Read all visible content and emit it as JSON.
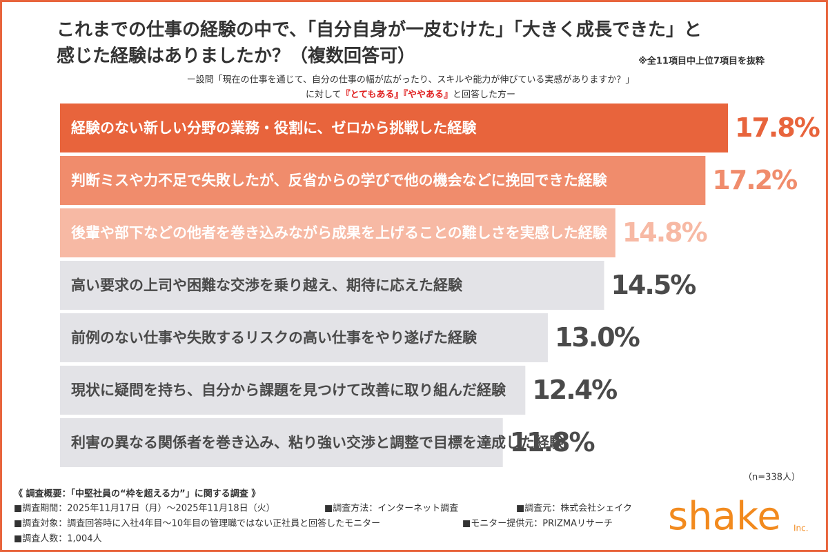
{
  "chart_data": {
    "type": "hbar",
    "title": [
      "これまでの仕事の経験の中で、「自分自身が一皮むけた」「大きく成長できた」と",
      "感じた経験はありましたか？（複数回答可）"
    ],
    "note": "※全11項目中上位7項目を抜粋",
    "subtitle": [
      "ー設問「現在の仕事を通じて、自分の仕事の幅が広がったり、スキルや能力が伸びている実感がありますか？」",
      "に対して",
      "『とてもある』『ややある』",
      "と回答した方ー"
    ],
    "categories": [
      "経験のない新しい分野の業務・役割に、ゼロから挑戦した経験",
      "判断ミスや力不足で失敗したが、反省からの学びで他の機会などに挽回できた経験",
      "後輩や部下などの他者を巻き込みながら成果を上げることの難しさを実感した経験",
      "高い要求の上司や困難な交渉を乗り越え、期待に応えた経験",
      "前例のない仕事や失敗するリスクの高い仕事をやり遂げた経験",
      "現状に疑問を持ち、自分から課題を見つけて改善に取り組んだ経験",
      "利害の異なる関係者を巻き込み、粘り強い交渉と調整で目標を達成した経験"
    ],
    "values": [
      17.8,
      17.2,
      14.8,
      14.5,
      13.0,
      12.4,
      11.8
    ],
    "value_labels": [
      "17.8%",
      "17.2%",
      "14.8%",
      "14.5%",
      "13.0%",
      "12.4%",
      "11.8%"
    ],
    "colors": [
      "#e8643c",
      "#f08c6c",
      "#f7b9a4",
      "#e3e3e7",
      "#e3e3e7",
      "#e3e3e7",
      "#e3e3e7"
    ],
    "label_colors": [
      "#ffffff",
      "#ffffff",
      "#ffffff",
      "#4a4a4a",
      "#4a4a4a",
      "#4a4a4a",
      "#4a4a4a"
    ],
    "value_label_colors": [
      "#e8643c",
      "#f08c6c",
      "#f7b9a4",
      "#4a4a4a",
      "#4a4a4a",
      "#4a4a4a",
      "#4a4a4a"
    ],
    "n": "（n=338人）",
    "survey": {
      "heading": "《 調査概要：「中堅社員の“枠を超える力”」に関する調査 》",
      "items": [
        "■調査期間：2025年11月17日（月）〜2025年11月18日（火）",
        "■調査方法：インターネット調査",
        "■調査元：株式会社シェイク",
        "■調査対象：調査回答時に入社4年目〜10年目の管理職ではない正社員と回答したモニター",
        "■モニター提供元：PRIZMAリサーチ",
        "■調査人数：1,004人"
      ]
    },
    "logo": "shake",
    "logo_suffix": "Inc."
  }
}
